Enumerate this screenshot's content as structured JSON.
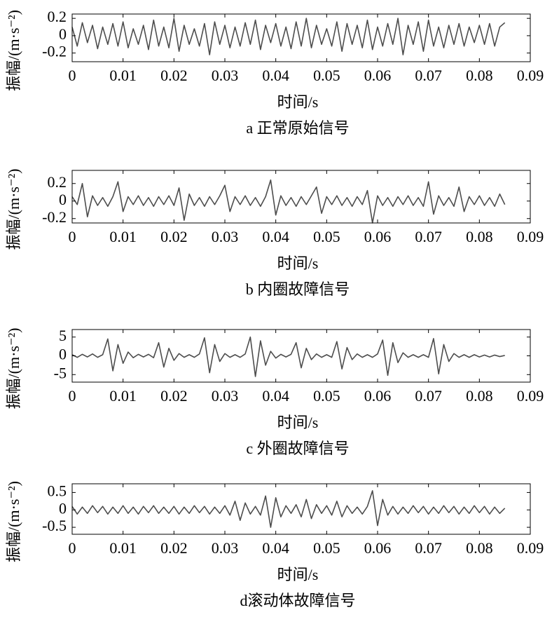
{
  "chart_data": [
    {
      "type": "line",
      "title": "a 正常原始信号",
      "xlabel": "时间/s",
      "ylabel": "振幅/(m·s⁻²)",
      "color": "#4d4d4d",
      "xlim": [
        0,
        0.09
      ],
      "xticks": [
        0,
        0.01,
        0.02,
        0.03,
        0.04,
        0.05,
        0.06,
        0.07,
        0.08,
        0.09
      ],
      "ylim": [
        -0.3,
        0.25
      ],
      "yticks": [
        -0.2,
        0,
        0.2
      ],
      "x": [
        0,
        0.001,
        0.002,
        0.003,
        0.004,
        0.005,
        0.006,
        0.007,
        0.008,
        0.009,
        0.01,
        0.011,
        0.012,
        0.013,
        0.014,
        0.015,
        0.016,
        0.017,
        0.018,
        0.019,
        0.02,
        0.021,
        0.022,
        0.023,
        0.024,
        0.025,
        0.026,
        0.027,
        0.028,
        0.029,
        0.03,
        0.031,
        0.032,
        0.033,
        0.034,
        0.035,
        0.036,
        0.037,
        0.038,
        0.039,
        0.04,
        0.041,
        0.042,
        0.043,
        0.044,
        0.045,
        0.046,
        0.047,
        0.048,
        0.049,
        0.05,
        0.051,
        0.052,
        0.053,
        0.054,
        0.055,
        0.056,
        0.057,
        0.058,
        0.059,
        0.06,
        0.061,
        0.062,
        0.063,
        0.064,
        0.065,
        0.066,
        0.067,
        0.068,
        0.069,
        0.07,
        0.071,
        0.072,
        0.073,
        0.074,
        0.075,
        0.076,
        0.077,
        0.078,
        0.079,
        0.08,
        0.081,
        0.082,
        0.083,
        0.084,
        0.085
      ],
      "values": [
        0.1,
        -0.12,
        0.15,
        -0.08,
        0.12,
        -0.15,
        0.1,
        -0.1,
        0.14,
        -0.12,
        0.16,
        -0.14,
        0.08,
        -0.1,
        0.12,
        -0.16,
        0.18,
        -0.12,
        0.1,
        -0.14,
        0.2,
        -0.18,
        0.12,
        -0.1,
        0.08,
        -0.12,
        0.14,
        -0.22,
        0.16,
        -0.1,
        0.12,
        -0.14,
        0.1,
        -0.12,
        0.15,
        -0.1,
        0.18,
        -0.16,
        0.12,
        -0.08,
        0.14,
        -0.12,
        0.1,
        -0.15,
        0.16,
        -0.12,
        0.2,
        -0.14,
        0.12,
        -0.1,
        0.08,
        -0.12,
        0.16,
        -0.18,
        0.14,
        -0.1,
        0.12,
        -0.14,
        0.18,
        -0.16,
        0.1,
        -0.12,
        0.14,
        -0.1,
        0.2,
        -0.22,
        0.12,
        -0.1,
        0.16,
        -0.18,
        0.18,
        -0.12,
        0.1,
        -0.14,
        0.12,
        -0.1,
        0.14,
        -0.12,
        0.1,
        -0.08,
        0.12,
        -0.1,
        0.14,
        -0.12,
        0.1,
        0.15
      ]
    },
    {
      "type": "line",
      "title": "b 内圈故障信号",
      "xlabel": "时间/s",
      "ylabel": "振幅/(m·s⁻²)",
      "color": "#4d4d4d",
      "xlim": [
        0,
        0.09
      ],
      "xticks": [
        0,
        0.01,
        0.02,
        0.03,
        0.04,
        0.05,
        0.06,
        0.07,
        0.08,
        0.09
      ],
      "ylim": [
        -0.25,
        0.35
      ],
      "yticks": [
        -0.2,
        0,
        0.2
      ],
      "x": [
        0,
        0.001,
        0.002,
        0.003,
        0.004,
        0.005,
        0.006,
        0.007,
        0.008,
        0.009,
        0.01,
        0.011,
        0.012,
        0.013,
        0.014,
        0.015,
        0.016,
        0.017,
        0.018,
        0.019,
        0.02,
        0.021,
        0.022,
        0.023,
        0.024,
        0.025,
        0.026,
        0.027,
        0.028,
        0.029,
        0.03,
        0.031,
        0.032,
        0.033,
        0.034,
        0.035,
        0.036,
        0.037,
        0.038,
        0.039,
        0.04,
        0.041,
        0.042,
        0.043,
        0.044,
        0.045,
        0.046,
        0.047,
        0.048,
        0.049,
        0.05,
        0.051,
        0.052,
        0.053,
        0.054,
        0.055,
        0.056,
        0.057,
        0.058,
        0.059,
        0.06,
        0.061,
        0.062,
        0.063,
        0.064,
        0.065,
        0.066,
        0.067,
        0.068,
        0.069,
        0.07,
        0.071,
        0.072,
        0.073,
        0.074,
        0.075,
        0.076,
        0.077,
        0.078,
        0.079,
        0.08,
        0.081,
        0.082,
        0.083,
        0.084,
        0.085
      ],
      "values": [
        0.05,
        -0.04,
        0.2,
        -0.18,
        0.06,
        -0.05,
        0.04,
        -0.06,
        0.05,
        0.22,
        -0.12,
        0.05,
        -0.04,
        0.06,
        -0.05,
        0.04,
        -0.06,
        0.05,
        -0.04,
        0.06,
        -0.05,
        0.15,
        -0.22,
        0.08,
        -0.05,
        0.04,
        -0.06,
        0.05,
        -0.04,
        0.06,
        0.18,
        -0.12,
        0.05,
        -0.04,
        0.06,
        -0.05,
        0.04,
        -0.06,
        0.05,
        0.24,
        -0.16,
        0.06,
        -0.05,
        0.04,
        -0.06,
        0.05,
        -0.04,
        0.06,
        0.16,
        -0.14,
        0.05,
        -0.04,
        0.06,
        -0.05,
        0.04,
        -0.06,
        0.05,
        -0.04,
        0.12,
        -0.25,
        0.06,
        -0.05,
        0.04,
        -0.06,
        0.05,
        -0.04,
        0.06,
        -0.05,
        0.04,
        -0.06,
        0.22,
        -0.15,
        0.06,
        -0.05,
        0.04,
        -0.06,
        0.16,
        -0.12,
        0.05,
        -0.04,
        0.06,
        -0.05,
        0.04,
        -0.06,
        0.08,
        -0.04
      ]
    },
    {
      "type": "line",
      "title": "c 外圈故障信号",
      "xlabel": "时间/s",
      "ylabel": "振幅/(m·s⁻²)",
      "color": "#4d4d4d",
      "xlim": [
        0,
        0.09
      ],
      "xticks": [
        0,
        0.01,
        0.02,
        0.03,
        0.04,
        0.05,
        0.06,
        0.07,
        0.08,
        0.09
      ],
      "ylim": [
        -7,
        7
      ],
      "yticks": [
        -5,
        0,
        5
      ],
      "x": [
        0,
        0.001,
        0.002,
        0.003,
        0.004,
        0.005,
        0.006,
        0.007,
        0.008,
        0.009,
        0.01,
        0.011,
        0.012,
        0.013,
        0.014,
        0.015,
        0.016,
        0.017,
        0.018,
        0.019,
        0.02,
        0.021,
        0.022,
        0.023,
        0.024,
        0.025,
        0.026,
        0.027,
        0.028,
        0.029,
        0.03,
        0.031,
        0.032,
        0.033,
        0.034,
        0.035,
        0.036,
        0.037,
        0.038,
        0.039,
        0.04,
        0.041,
        0.042,
        0.043,
        0.044,
        0.045,
        0.046,
        0.047,
        0.048,
        0.049,
        0.05,
        0.051,
        0.052,
        0.053,
        0.054,
        0.055,
        0.056,
        0.057,
        0.058,
        0.059,
        0.06,
        0.061,
        0.062,
        0.063,
        0.064,
        0.065,
        0.066,
        0.067,
        0.068,
        0.069,
        0.07,
        0.071,
        0.072,
        0.073,
        0.074,
        0.075,
        0.076,
        0.077,
        0.078,
        0.079,
        0.08,
        0.081,
        0.082,
        0.083,
        0.084,
        0.085
      ],
      "values": [
        0.3,
        -0.4,
        0.4,
        -0.3,
        0.5,
        -0.4,
        0.3,
        4.5,
        -4,
        3,
        -2,
        1,
        -0.5,
        0.4,
        -0.3,
        0.4,
        -0.5,
        3.5,
        -3,
        2,
        -1.2,
        0.6,
        -0.4,
        0.3,
        -0.4,
        0.5,
        4.8,
        -4.5,
        3,
        -1.5,
        0.6,
        -0.4,
        0.3,
        -0.4,
        0.5,
        5,
        -5.5,
        4,
        -2.5,
        1.2,
        -0.6,
        0.4,
        -0.3,
        0.4,
        3.5,
        -3.2,
        2,
        -1,
        0.5,
        -0.4,
        0.3,
        -0.4,
        3.8,
        -3.5,
        2.2,
        -1,
        0.5,
        -0.4,
        0.3,
        -0.4,
        0.5,
        4.2,
        -5.2,
        3.5,
        -1.8,
        0.8,
        -0.4,
        0.3,
        -0.4,
        0.3,
        -0.4,
        4.6,
        -4.8,
        3,
        -1.5,
        0.6,
        -0.4,
        0.3,
        -0.4,
        0.3,
        -0.3,
        0.2,
        -0.3,
        0.2,
        -0.2,
        0.1
      ]
    },
    {
      "type": "line",
      "title": "d滚动体故障信号",
      "xlabel": "时间/s",
      "ylabel": "振幅/(m·s⁻²)",
      "color": "#4d4d4d",
      "xlim": [
        0,
        0.09
      ],
      "xticks": [
        0,
        0.01,
        0.02,
        0.03,
        0.04,
        0.05,
        0.06,
        0.07,
        0.08,
        0.09
      ],
      "ylim": [
        -0.7,
        0.75
      ],
      "yticks": [
        -0.5,
        0,
        0.5
      ],
      "x": [
        0,
        0.001,
        0.002,
        0.003,
        0.004,
        0.005,
        0.006,
        0.007,
        0.008,
        0.009,
        0.01,
        0.011,
        0.012,
        0.013,
        0.014,
        0.015,
        0.016,
        0.017,
        0.018,
        0.019,
        0.02,
        0.021,
        0.022,
        0.023,
        0.024,
        0.025,
        0.026,
        0.027,
        0.028,
        0.029,
        0.03,
        0.031,
        0.032,
        0.033,
        0.034,
        0.035,
        0.036,
        0.037,
        0.038,
        0.039,
        0.04,
        0.041,
        0.042,
        0.043,
        0.044,
        0.045,
        0.046,
        0.047,
        0.048,
        0.049,
        0.05,
        0.051,
        0.052,
        0.053,
        0.054,
        0.055,
        0.056,
        0.057,
        0.058,
        0.059,
        0.06,
        0.061,
        0.062,
        0.063,
        0.064,
        0.065,
        0.066,
        0.067,
        0.068,
        0.069,
        0.07,
        0.071,
        0.072,
        0.073,
        0.074,
        0.075,
        0.076,
        0.077,
        0.078,
        0.079,
        0.08,
        0.081,
        0.082,
        0.083,
        0.084,
        0.085
      ],
      "values": [
        0.1,
        -0.12,
        0.08,
        -0.1,
        0.12,
        -0.08,
        0.1,
        -0.12,
        0.08,
        -0.1,
        0.12,
        -0.1,
        0.08,
        -0.12,
        0.1,
        -0.08,
        0.12,
        -0.1,
        0.08,
        -0.1,
        0.1,
        -0.12,
        0.08,
        -0.1,
        0.12,
        -0.08,
        0.1,
        -0.12,
        0.08,
        -0.1,
        0.12,
        -0.15,
        0.25,
        -0.3,
        0.2,
        -0.12,
        0.1,
        -0.15,
        0.4,
        -0.5,
        0.35,
        -0.2,
        0.12,
        -0.1,
        0.15,
        -0.2,
        0.3,
        -0.25,
        0.15,
        -0.1,
        0.12,
        -0.15,
        0.25,
        -0.2,
        0.12,
        -0.1,
        0.08,
        -0.12,
        0.1,
        0.55,
        -0.45,
        0.3,
        -0.15,
        0.1,
        -0.12,
        0.08,
        -0.1,
        0.12,
        -0.08,
        0.1,
        -0.12,
        0.08,
        -0.1,
        0.12,
        -0.08,
        0.1,
        -0.12,
        0.08,
        -0.1,
        0.12,
        -0.08,
        0.1,
        -0.12,
        0.08,
        -0.1,
        0.05
      ]
    }
  ]
}
